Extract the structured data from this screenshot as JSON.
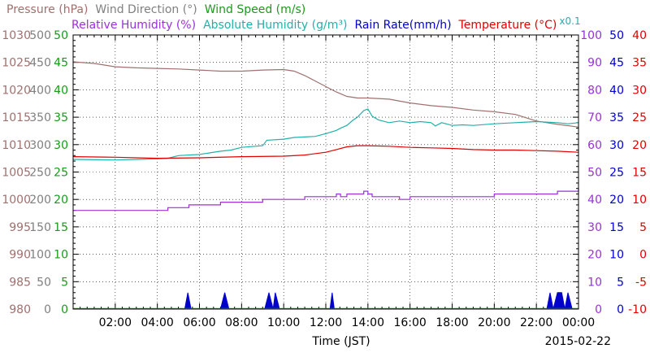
{
  "chart_data": {
    "type": "line",
    "xlabel": "Time (JST)",
    "date": "2015-02-22",
    "x_ticks": [
      "02:00",
      "04:00",
      "06:00",
      "08:00",
      "10:00",
      "12:00",
      "14:00",
      "16:00",
      "18:00",
      "20:00",
      "22:00",
      "00:00"
    ],
    "x_range_hours": [
      0,
      24
    ],
    "grid": "dotted",
    "legend": [
      {
        "key": "pressure",
        "label": "Pressure (hPa)",
        "color": "#a0706e"
      },
      {
        "key": "wind_dir",
        "label": "Wind Direction (°)",
        "color": "#808080"
      },
      {
        "key": "wind_speed",
        "label": "Wind Speed (m/s)",
        "color": "#1a9a1a"
      },
      {
        "key": "rh",
        "label": "Relative Humidity (%)",
        "color": "#9b30d9"
      },
      {
        "key": "ah",
        "label": "Absolute Humidity (g/m³)",
        "color": "#20b2aa"
      },
      {
        "key": "rain",
        "label": "Rain Rate(mm/h)",
        "color": "#0000cc"
      },
      {
        "key": "temp",
        "label": "Temperature (°C)",
        "color": "#e00000"
      }
    ],
    "x01_note": "x0.1",
    "axes": {
      "pressure": {
        "ticks": [
          "980",
          "985",
          "990",
          "995",
          "1000",
          "1005",
          "1010",
          "1015",
          "1020",
          "1025",
          "1030"
        ],
        "range": [
          980,
          1030
        ],
        "color": "#a0706e"
      },
      "wind_dir": {
        "ticks": [
          "0",
          "50",
          "100",
          "150",
          "200",
          "250",
          "300",
          "350",
          "400",
          "450",
          "500"
        ],
        "range": [
          0,
          500
        ],
        "color": "#808080"
      },
      "wind_speed": {
        "ticks": [
          "0",
          "5",
          "10",
          "15",
          "20",
          "25",
          "30",
          "35",
          "40",
          "45",
          "50"
        ],
        "range": [
          0,
          50
        ],
        "color": "#1a9a1a"
      },
      "rh": {
        "ticks": [
          "0",
          "10",
          "20",
          "30",
          "40",
          "50",
          "60",
          "70",
          "80",
          "90",
          "100"
        ],
        "range": [
          0,
          100
        ],
        "color": "#9b30d9"
      },
      "rain": {
        "ticks": [
          "0",
          "5",
          "10",
          "15",
          "20",
          "25",
          "30",
          "35",
          "40",
          "45",
          "50"
        ],
        "range": [
          0,
          50
        ],
        "color": "#0000cc"
      },
      "temp": {
        "ticks": [
          "-10",
          "-5",
          "0",
          "5",
          "10",
          "15",
          "20",
          "25",
          "30",
          "35",
          "40"
        ],
        "range": [
          -10,
          40
        ],
        "color": "#e00000"
      }
    },
    "series": [
      {
        "key": "pressure",
        "name": "Pressure (hPa)",
        "axis": "pressure",
        "x": [
          0,
          1,
          2,
          3,
          4,
          5,
          6,
          7,
          8,
          9,
          10,
          10.5,
          11,
          11.5,
          12,
          12.5,
          13,
          13.5,
          14,
          15,
          16,
          17,
          18,
          19,
          20,
          21,
          22,
          23,
          24
        ],
        "y": [
          1025.1,
          1024.8,
          1024.2,
          1024,
          1023.9,
          1023.8,
          1023.6,
          1023.4,
          1023.4,
          1023.6,
          1023.7,
          1023.4,
          1022.6,
          1021.6,
          1020.6,
          1019.6,
          1018.8,
          1018.5,
          1018.5,
          1018.3,
          1017.6,
          1017.1,
          1016.8,
          1016.3,
          1016,
          1015.5,
          1014.3,
          1013.7,
          1013.2
        ]
      },
      {
        "key": "ah",
        "name": "Absolute Humidity (g/m³)",
        "axis": "wind_dir",
        "scale": 0.1,
        "x": [
          0,
          2,
          3,
          4,
          4.5,
          5,
          6,
          6.5,
          7,
          7.5,
          8,
          9,
          9.2,
          10,
          10.5,
          11,
          11.5,
          12,
          12.5,
          12.7,
          13,
          13.3,
          13.5,
          13.8,
          14,
          14.2,
          14.5,
          15,
          15.5,
          16,
          16.5,
          17,
          17.2,
          17.5,
          18,
          18.5,
          19,
          20,
          21,
          22,
          23,
          23.5,
          24
        ],
        "y": [
          27.3,
          27.2,
          27.3,
          27.4,
          27.5,
          28.0,
          28.2,
          28.5,
          28.8,
          29.0,
          29.5,
          29.8,
          30.8,
          31.0,
          31.3,
          31.4,
          31.5,
          32.0,
          32.6,
          33.0,
          33.5,
          34.5,
          35.0,
          36.2,
          36.5,
          35.2,
          34.5,
          34.0,
          34.3,
          34.0,
          34.2,
          34.0,
          33.4,
          34.0,
          33.5,
          33.6,
          33.5,
          33.8,
          34.0,
          34.2,
          34.0,
          33.8,
          34.0
        ]
      },
      {
        "key": "temp",
        "name": "Temperature (°C)",
        "axis": "temp",
        "x": [
          0,
          2,
          4,
          6,
          8,
          10,
          11,
          12,
          12.5,
          13,
          13.5,
          14,
          15,
          16,
          17,
          18,
          19,
          20,
          21,
          22,
          23,
          24
        ],
        "y": [
          17.8,
          17.7,
          17.5,
          17.6,
          17.8,
          17.9,
          18.1,
          18.6,
          19.1,
          19.6,
          19.8,
          19.8,
          19.7,
          19.5,
          19.4,
          19.3,
          19.1,
          19.0,
          19.0,
          18.9,
          18.8,
          18.6
        ]
      },
      {
        "key": "rh",
        "name": "Relative Humidity (%)",
        "axis": "rh",
        "step": true,
        "x": [
          0,
          4,
          4.5,
          5,
          5.5,
          6,
          7,
          8,
          9,
          10,
          11,
          12,
          12.5,
          12.7,
          13,
          13.5,
          13.8,
          14,
          14.2,
          15,
          15.5,
          16,
          17,
          18,
          19,
          20,
          21,
          22,
          23,
          23.5,
          24
        ],
        "y": [
          36,
          36,
          37,
          37,
          38,
          38,
          39,
          39,
          40,
          40,
          41,
          41,
          42,
          41,
          42,
          42,
          43,
          42,
          41,
          41,
          40,
          41,
          41,
          41,
          41,
          42,
          42,
          42,
          43,
          43,
          44
        ]
      },
      {
        "key": "rain",
        "name": "Rain Rate(mm/h)",
        "axis": "rain",
        "style": "spikes",
        "x": [
          5.3,
          5.45,
          5.6,
          7.0,
          7.2,
          7.4,
          9.1,
          9.3,
          9.5,
          9.6,
          9.8,
          12.2,
          12.3,
          12.4,
          12.55,
          22.5,
          22.65,
          22.8,
          23.0,
          23.1,
          23.2,
          23.35,
          23.5,
          23.7
        ],
        "y": [
          0,
          3,
          0,
          0,
          3,
          0,
          0,
          3,
          0,
          3,
          0,
          0,
          3,
          0,
          0,
          0,
          3,
          0,
          3,
          3,
          3,
          0,
          3,
          0
        ]
      }
    ]
  }
}
